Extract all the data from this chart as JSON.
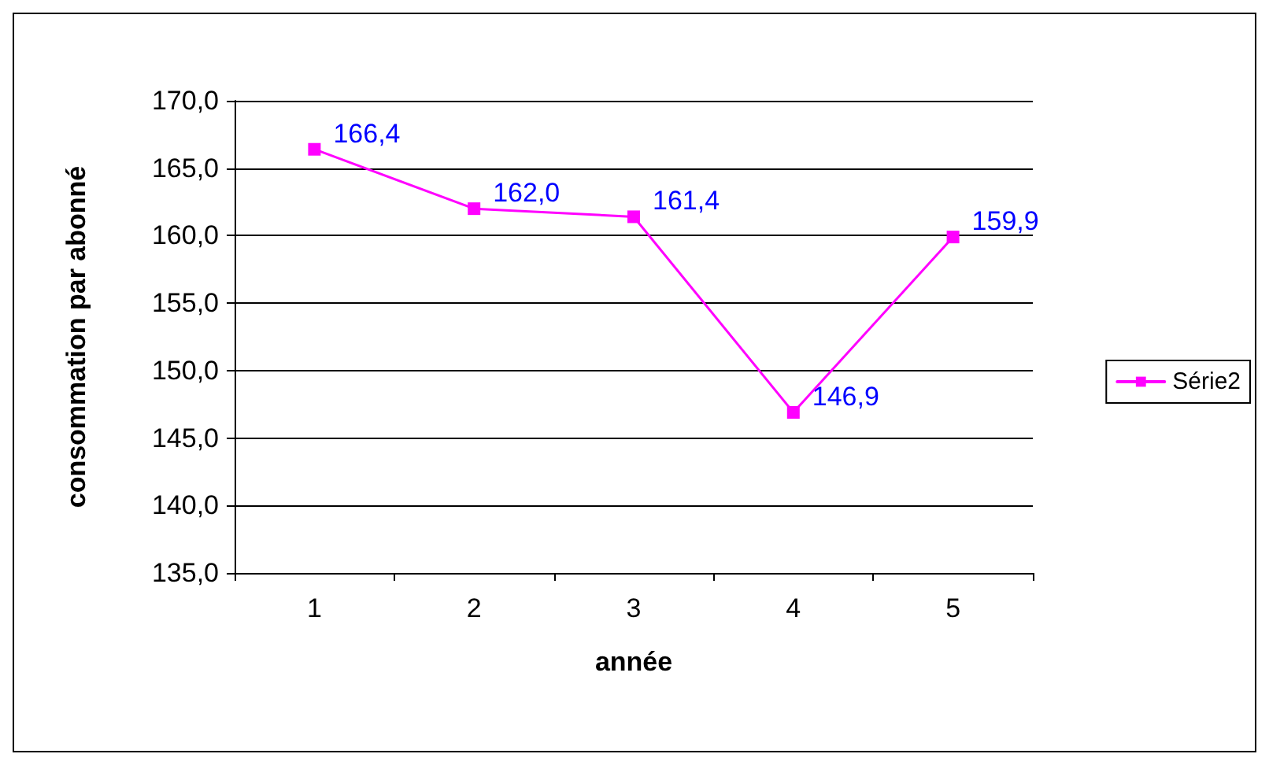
{
  "chart_data": {
    "type": "line",
    "xlabel": "année",
    "ylabel": "consommation par abonné",
    "categories": [
      "1",
      "2",
      "3",
      "4",
      "5"
    ],
    "series": [
      {
        "name": "Série2",
        "color": "#ff00ff",
        "values": [
          166.4,
          162.0,
          161.4,
          146.9,
          159.9
        ],
        "value_labels": [
          "166,4",
          "162,0",
          "161,4",
          "146,9",
          "159,9"
        ]
      }
    ],
    "ylim": [
      135,
      170
    ],
    "yticks": [
      {
        "value": 135,
        "label": "135,0"
      },
      {
        "value": 140,
        "label": "140,0"
      },
      {
        "value": 145,
        "label": "145,0"
      },
      {
        "value": 150,
        "label": "150,0"
      },
      {
        "value": 155,
        "label": "155,0"
      },
      {
        "value": 160,
        "label": "160,0"
      },
      {
        "value": 165,
        "label": "165,0"
      },
      {
        "value": 170,
        "label": "170,0"
      }
    ],
    "grid": "y",
    "legend": "right",
    "marker": "square",
    "line_style": "solid"
  }
}
